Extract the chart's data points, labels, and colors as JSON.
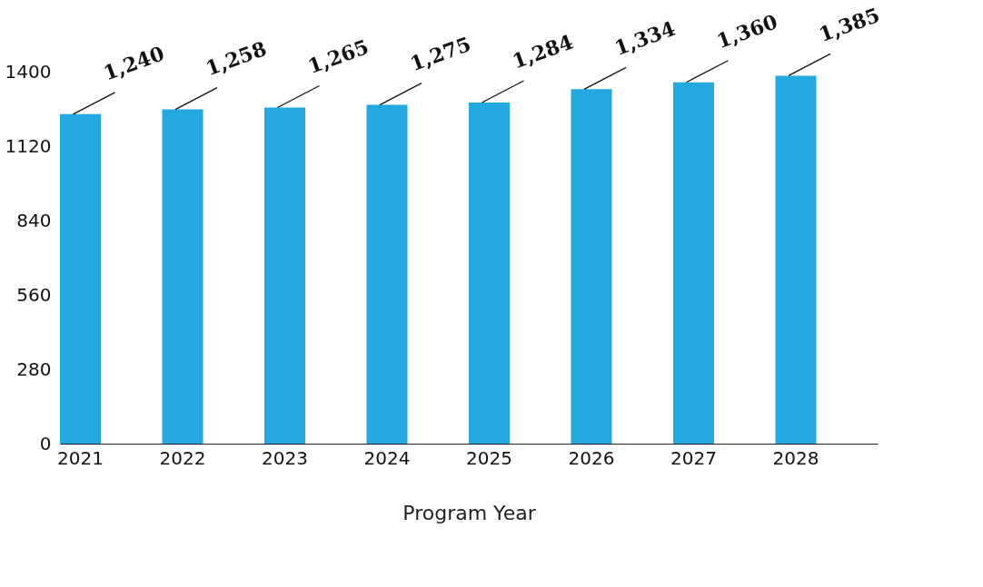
{
  "chart_data": {
    "type": "bar",
    "categories": [
      "2021",
      "2022",
      "2023",
      "2024",
      "2025",
      "2026",
      "2027",
      "2028"
    ],
    "values": [
      1240,
      1258,
      1265,
      1275,
      1284,
      1334,
      1360,
      1385
    ],
    "value_labels": [
      "1,240",
      "1,258",
      "1,265",
      "1,275",
      "1,284",
      "1,334",
      "1,360",
      "1,385"
    ],
    "color": "#23a8e0",
    "xlabel": "Program Year",
    "ylim": [
      0,
      1400
    ],
    "yticks": [
      0,
      280,
      560,
      840,
      1120,
      1400
    ],
    "grid": false
  }
}
